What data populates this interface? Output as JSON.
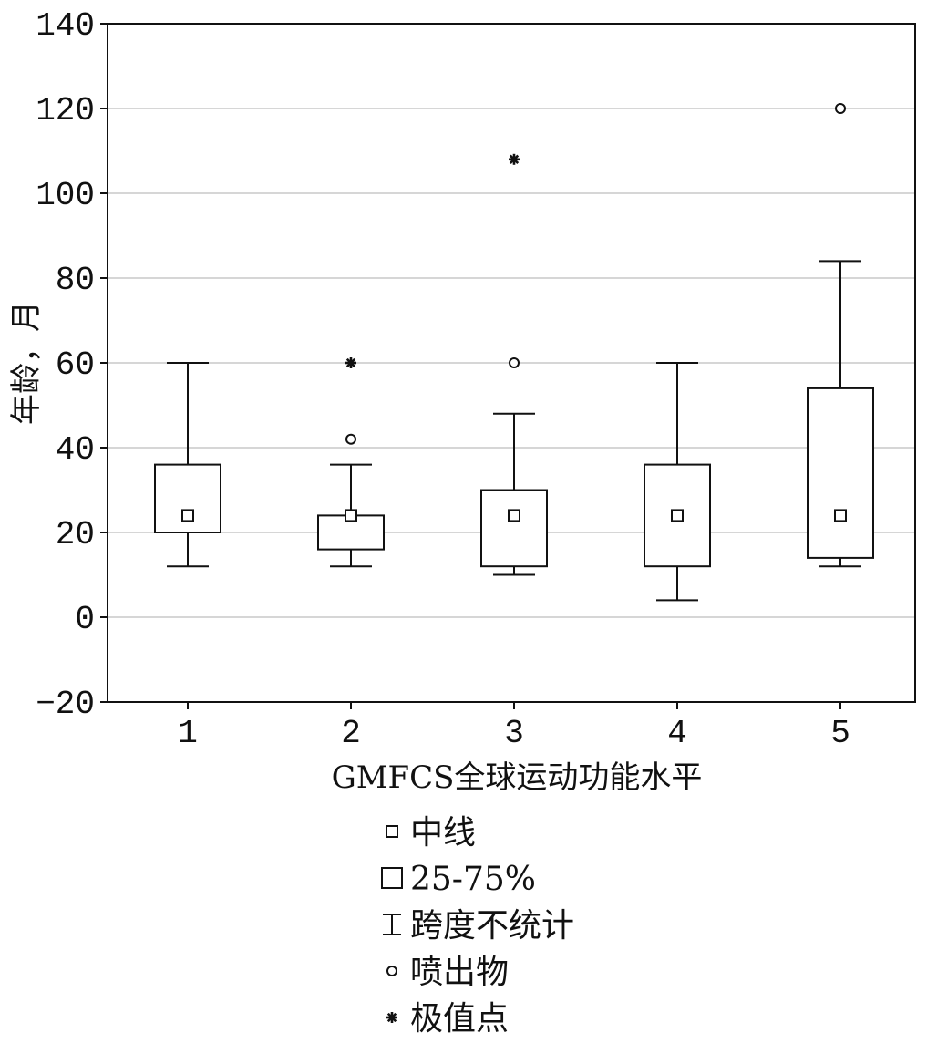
{
  "chart_data": {
    "type": "box",
    "title": "",
    "xlabel": "GMFCS全球运动功能水平",
    "ylabel": "年龄，月",
    "ylim": [
      -20,
      140
    ],
    "yticks": [
      -20,
      0,
      20,
      40,
      60,
      80,
      100,
      120,
      140
    ],
    "grid": true,
    "categories": [
      "1",
      "2",
      "3",
      "4",
      "5"
    ],
    "boxes": [
      {
        "category": "1",
        "median": 24,
        "q1": 20,
        "q3": 36,
        "whisker_low": 12,
        "whisker_high": 60,
        "outliers": [],
        "extremes": []
      },
      {
        "category": "2",
        "median": 24,
        "q1": 16,
        "q3": 24,
        "whisker_low": 12,
        "whisker_high": 36,
        "outliers": [
          42
        ],
        "extremes": [
          60
        ]
      },
      {
        "category": "3",
        "median": 24,
        "q1": 12,
        "q3": 30,
        "whisker_low": 10,
        "whisker_high": 48,
        "outliers": [
          60
        ],
        "extremes": [
          108
        ]
      },
      {
        "category": "4",
        "median": 24,
        "q1": 12,
        "q3": 36,
        "whisker_low": 4,
        "whisker_high": 60,
        "outliers": [],
        "extremes": []
      },
      {
        "category": "5",
        "median": 24,
        "q1": 14,
        "q3": 54,
        "whisker_low": 12,
        "whisker_high": 84,
        "outliers": [
          120
        ],
        "extremes": []
      }
    ],
    "legend": {
      "position": "bottom",
      "entries": [
        {
          "symbol": "median",
          "label": "中线"
        },
        {
          "symbol": "box",
          "label": "25-75%"
        },
        {
          "symbol": "whisker",
          "label": "跨度不统计"
        },
        {
          "symbol": "outlier",
          "label": "喷出物"
        },
        {
          "symbol": "extreme",
          "label": "极值点"
        }
      ]
    },
    "colors": {
      "stroke": "#111111",
      "grid": "#c8c8c8",
      "background": "#ffffff"
    }
  }
}
